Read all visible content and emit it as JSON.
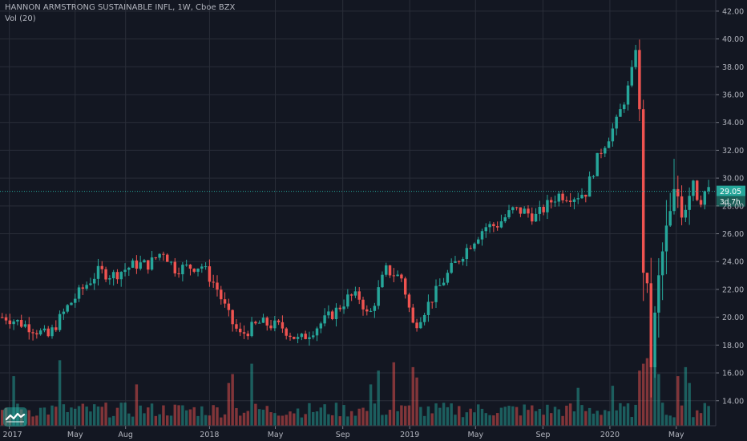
{
  "header": {
    "title": "HANNON ARMSTRONG SUSTAINABLE INFL, 1W, Cboe BZX",
    "indicator": "Vol (20)"
  },
  "chart_data": {
    "type": "candlestick",
    "y_ticks": [
      14,
      16,
      18,
      20,
      22,
      24,
      26,
      28,
      30,
      32,
      34,
      36,
      38,
      40,
      42
    ],
    "y_tick_labels": [
      "14.00",
      "16.00",
      "18.00",
      "20.00",
      "22.00",
      "24.00",
      "26.00",
      "28.00",
      "30.00",
      "32.00",
      "34.00",
      "36.00",
      "38.00",
      "40.00",
      "42.00"
    ],
    "ylim": [
      12.2,
      42.8
    ],
    "x_labels": [
      "2017",
      "May",
      "Aug",
      "2018",
      "May",
      "Sep",
      "2019",
      "May",
      "Sep",
      "2020",
      "May"
    ],
    "last_price": "29.05",
    "countdown": "3d 7h",
    "grid": true,
    "colors": {
      "up": "#26a69a",
      "down": "#ef5350",
      "background": "#131722",
      "grid": "#2a2e39",
      "text": "#b2b5be",
      "up_volume": "#26a69a",
      "down_volume": "#ef5350"
    },
    "keypoints": [
      [
        "2017-01-02",
        20.0
      ],
      [
        "2017-02-15",
        19.3
      ],
      [
        "2017-03-20",
        18.6
      ],
      [
        "2017-04-25",
        20.8
      ],
      [
        "2017-05-25",
        22.2
      ],
      [
        "2017-06-20",
        23.3
      ],
      [
        "2017-07-15",
        23.0
      ],
      [
        "2017-08-25",
        23.8
      ],
      [
        "2017-09-20",
        23.8
      ],
      [
        "2017-10-15",
        24.8
      ],
      [
        "2017-11-05",
        23.5
      ],
      [
        "2017-12-25",
        23.7
      ],
      [
        "2018-01-20",
        22.2
      ],
      [
        "2018-02-15",
        19.8
      ],
      [
        "2018-03-05",
        18.7
      ],
      [
        "2018-04-10",
        19.6
      ],
      [
        "2018-05-20",
        19.3
      ],
      [
        "2018-06-20",
        18.3
      ],
      [
        "2018-07-25",
        19.4
      ],
      [
        "2018-08-25",
        20.4
      ],
      [
        "2018-09-20",
        21.5
      ],
      [
        "2018-10-10",
        21.4
      ],
      [
        "2018-10-25",
        19.9
      ],
      [
        "2018-11-25",
        23.4
      ],
      [
        "2018-12-25",
        22.8
      ],
      [
        "2019-01-15",
        19.3
      ],
      [
        "2019-02-15",
        21.2
      ],
      [
        "2019-03-25",
        23.5
      ],
      [
        "2019-04-25",
        25.1
      ],
      [
        "2019-05-25",
        26.5
      ],
      [
        "2019-06-15",
        26.6
      ],
      [
        "2019-07-15",
        27.7
      ],
      [
        "2019-08-05",
        27.6
      ],
      [
        "2019-08-25",
        27.2
      ],
      [
        "2019-10-05",
        28.8
      ],
      [
        "2019-11-05",
        28.7
      ],
      [
        "2019-11-25",
        29.0
      ],
      [
        "2019-12-20",
        31.8
      ],
      [
        "2020-01-20",
        34.0
      ],
      [
        "2020-02-15",
        37.0
      ],
      [
        "2020-02-24",
        39.5
      ],
      [
        "2020-03-02",
        34.0
      ],
      [
        "2020-03-09",
        24.0
      ],
      [
        "2020-03-16",
        21.0
      ],
      [
        "2020-03-23",
        17.0
      ],
      [
        "2020-03-30",
        19.5
      ],
      [
        "2020-04-10",
        24.0
      ],
      [
        "2020-04-24",
        26.5
      ],
      [
        "2020-05-08",
        29.0
      ],
      [
        "2020-05-22",
        28.0
      ],
      [
        "2020-06-05",
        30.5
      ],
      [
        "2020-06-19",
        28.0
      ],
      [
        "2020-06-26",
        29.05
      ]
    ],
    "volume_spikes": {
      "2017-01-09": 0.72,
      "2017-04-03": 0.95,
      "2017-08-21": 0.6,
      "2018-02-05": 0.62,
      "2018-02-12": 0.75,
      "2018-03-19": 0.9,
      "2018-10-22": 0.6,
      "2018-11-05": 0.8,
      "2018-12-03": 0.92,
      "2019-01-07": 0.85,
      "2019-01-14": 0.7,
      "2019-11-04": 0.55,
      "2020-01-06": 0.58,
      "2020-02-24": 0.8,
      "2020-03-02": 0.9,
      "2020-03-09": 0.98,
      "2020-03-16": 1.0,
      "2020-03-23": 0.92,
      "2020-03-30": 0.75,
      "2020-05-04": 0.72,
      "2020-05-18": 0.85,
      "2020-05-25": 0.62
    }
  }
}
